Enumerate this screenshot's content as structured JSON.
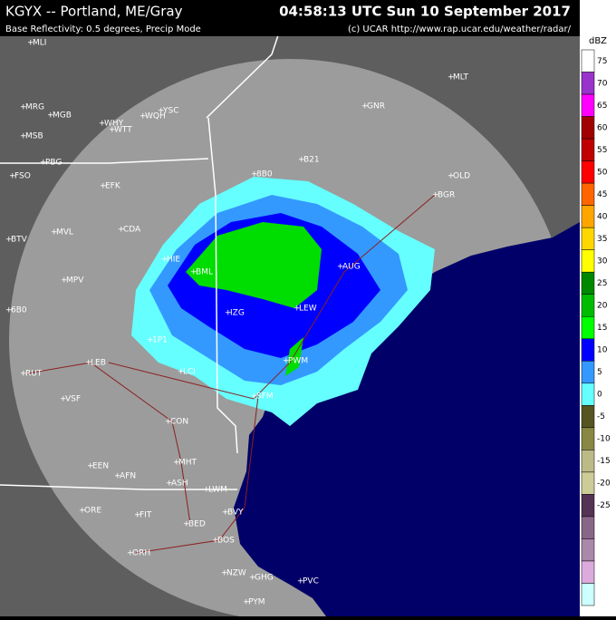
{
  "header": {
    "title": "KGYX -- Portland, ME/Gray",
    "time": "04:58:13 UTC Sun 10 September 2017",
    "subtitle": "Base Reflectivity: 0.5 degrees, Precip Mode",
    "credit": "(c) UCAR  http://www.rap.ucar.edu/weather/radar/"
  },
  "legend": {
    "unit": "dBZ",
    "labels": [
      75,
      70,
      65,
      60,
      55,
      50,
      45,
      40,
      35,
      30,
      25,
      20,
      15,
      10,
      5,
      0,
      -5,
      -10,
      -15,
      -20,
      -25
    ],
    "colors": [
      "#ffffff",
      "#9933cc",
      "#ff00ff",
      "#a00000",
      "#c00000",
      "#ff0000",
      "#ff6600",
      "#ffa500",
      "#ffd700",
      "#ffff00",
      "#008800",
      "#00bb00",
      "#00ff00",
      "#0000ff",
      "#3399ff",
      "#66ffff",
      "#555522",
      "#888844",
      "#bbbb88",
      "#cccc99",
      "#553355",
      "#886688",
      "#aa88aa",
      "#ddaadd",
      "#ccffff"
    ]
  },
  "cities": [
    "MLI",
    "MLT",
    "GNR",
    "YSC",
    "WQH",
    "WHY",
    "WTT",
    "MRG",
    "MGB",
    "MSB",
    "FSO",
    "PBG",
    "EFK",
    "B21",
    "8B0",
    "OLD",
    "BGR",
    "MVL",
    "CDA",
    "BTV",
    "HIE",
    "BML",
    "AUG",
    "MPV",
    "6B0",
    "LEW",
    "IZG",
    "1P1",
    "LEB",
    "LCI",
    "RUT",
    "PWM",
    "VSF",
    "SFM",
    "CON",
    "EEN",
    "AFN",
    "MHT",
    "ASH",
    "LWM",
    "FIT",
    "ORE",
    "BVY",
    "BED",
    "ORH",
    "BOS",
    "NZW",
    "GHG",
    "PVC",
    "PYM"
  ]
}
